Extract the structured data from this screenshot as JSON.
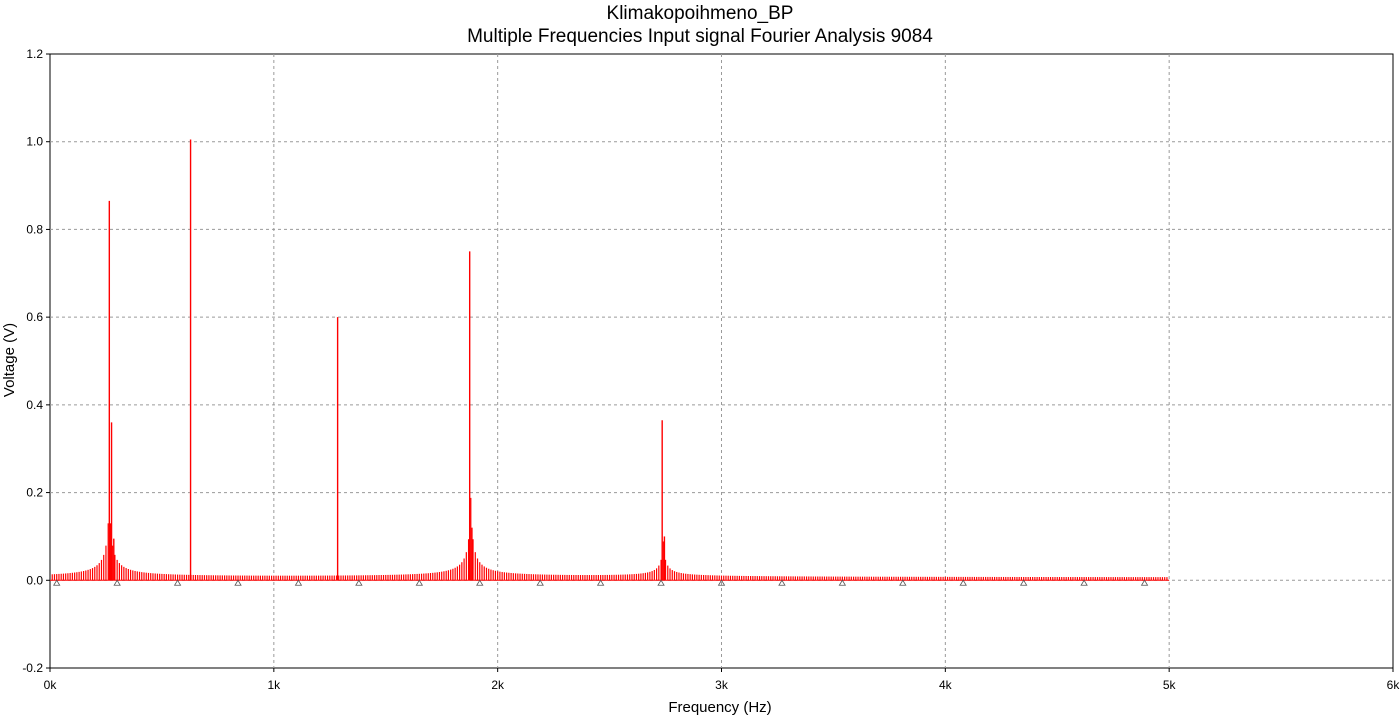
{
  "chart_data": {
    "type": "bar",
    "title": "Klimakopoihmeno_BP",
    "subtitle": "Multiple Frequencies Input signal Fourier Analysis 9084",
    "xlabel": "Frequency (Hz)",
    "ylabel": "Voltage (V)",
    "xlim": [
      0,
      6000
    ],
    "ylim": [
      -0.2,
      1.2
    ],
    "x_ticks": [
      0,
      1000,
      2000,
      3000,
      4000,
      5000,
      6000
    ],
    "x_tick_labels": [
      "0k",
      "1k",
      "2k",
      "3k",
      "4k",
      "5k",
      "6k"
    ],
    "y_ticks": [
      -0.2,
      0,
      0.2,
      0.4,
      0.6,
      0.8,
      1.0,
      1.2
    ],
    "y_tick_labels": [
      "-0.2",
      "0.0",
      "0.2",
      "0.4",
      "0.6",
      "0.8",
      "1.0",
      "1.2"
    ],
    "grid": true,
    "series": [
      {
        "color": "#ff0000",
        "x": [
          265,
          275,
          285,
          628,
          1285,
          1875,
          1885,
          2735,
          2745
        ],
        "values": [
          0.865,
          0.36,
          0.095,
          1.005,
          0.6,
          0.75,
          0.12,
          0.365,
          0.1
        ],
        "leakage_peaks": [
          {
            "center": 265,
            "amplitude": 0.19
          },
          {
            "center": 1880,
            "amplitude": 0.18
          },
          {
            "center": 2740,
            "amplitude": 0.08
          }
        ],
        "x_end": 5000
      }
    ]
  }
}
